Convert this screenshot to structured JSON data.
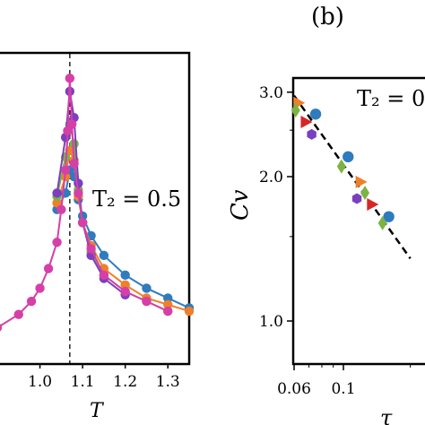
{
  "colors": {
    "blue": "#2e7bbf",
    "orange": "#f07f2a",
    "green": "#7cb342",
    "purple": "#7b3fbf",
    "magenta": "#d63fa8",
    "red": "#d62728",
    "axis": "#000000"
  },
  "chart_data": [
    {
      "type": "line",
      "panel_label": "",
      "xlabel": "T",
      "ylabel": "",
      "xlim": [
        0.9,
        1.35
      ],
      "x_ticks": [
        "1.0",
        "1.1",
        "1.2",
        "1.3"
      ],
      "x_tick_values": [
        1.0,
        1.1,
        1.2,
        1.3
      ],
      "critical_line_x": 1.07,
      "annotation": "T₂ = 0.5",
      "series": [
        {
          "color": "blue",
          "marker": "circle",
          "x": [
            1.04,
            1.06,
            1.07,
            1.08,
            1.09,
            1.1,
            1.12,
            1.15,
            1.2,
            1.25,
            1.3,
            1.35
          ],
          "y": [
            0.4,
            0.45,
            0.52,
            0.5,
            0.43,
            0.38,
            0.32,
            0.26,
            0.2,
            0.16,
            0.13,
            0.1
          ]
        },
        {
          "color": "orange",
          "marker": "circle",
          "x": [
            1.04,
            1.06,
            1.07,
            1.08,
            1.09,
            1.1,
            1.12,
            1.15,
            1.2,
            1.25,
            1.3,
            1.35
          ],
          "y": [
            0.42,
            0.5,
            0.58,
            0.55,
            0.44,
            0.36,
            0.29,
            0.22,
            0.17,
            0.13,
            0.11,
            0.09
          ]
        },
        {
          "color": "green",
          "marker": "circle",
          "x": [
            1.04,
            1.06,
            1.07,
            1.08,
            1.09,
            1.1,
            1.12,
            1.15,
            1.2,
            1.25,
            1.3
          ],
          "y": [
            0.44,
            0.56,
            0.66,
            0.6,
            0.46,
            0.36,
            0.27,
            0.2,
            0.15,
            0.12,
            0.09
          ]
        },
        {
          "color": "purple",
          "marker": "circle",
          "x": [
            1.04,
            1.06,
            1.07,
            1.08,
            1.09,
            1.1,
            1.12,
            1.15,
            1.2
          ],
          "y": [
            0.45,
            0.62,
            0.76,
            0.68,
            0.48,
            0.36,
            0.26,
            0.19,
            0.14
          ]
        },
        {
          "color": "magenta",
          "marker": "circle",
          "x": [
            0.9,
            0.95,
            0.98,
            1.0,
            1.02,
            1.04,
            1.05,
            1.06,
            1.065,
            1.07,
            1.075,
            1.08,
            1.09,
            1.1,
            1.12,
            1.15,
            1.2,
            1.25,
            1.3
          ],
          "y": [
            0.04,
            0.08,
            0.12,
            0.16,
            0.22,
            0.3,
            0.4,
            0.52,
            0.64,
            0.8,
            0.66,
            0.54,
            0.45,
            0.36,
            0.28,
            0.2,
            0.15,
            0.12,
            0.09
          ]
        }
      ]
    },
    {
      "type": "scatter",
      "panel_label": "(b)",
      "xlabel": "τ",
      "ylabel": "Cv",
      "x_scale": "log",
      "y_scale": "log",
      "xlim": [
        0.06,
        0.2
      ],
      "ylim": [
        0.8,
        3.4
      ],
      "x_ticks": [
        "0.06",
        "0.1"
      ],
      "x_tick_values": [
        0.06,
        0.1
      ],
      "y_ticks": [
        "1.0",
        "2.0",
        "3.0"
      ],
      "y_tick_values": [
        1.0,
        2.0,
        3.0
      ],
      "annotation": "T₂ = 0",
      "fit_line": {
        "x": [
          0.06,
          0.2
        ],
        "y": [
          2.95,
          1.35
        ]
      },
      "series": [
        {
          "color": "blue",
          "marker": "circle",
          "x": [
            0.075,
            0.105,
            0.16
          ],
          "y": [
            2.7,
            2.2,
            1.65
          ]
        },
        {
          "color": "orange",
          "marker": "triangle-right",
          "x": [
            0.063,
            0.12
          ],
          "y": [
            2.85,
            1.95
          ]
        },
        {
          "color": "green",
          "marker": "diamond",
          "x": [
            0.061,
            0.098,
            0.125,
            0.15
          ],
          "y": [
            2.75,
            2.1,
            1.85,
            1.6
          ]
        },
        {
          "color": "purple",
          "marker": "hexagon",
          "x": [
            0.072,
            0.115
          ],
          "y": [
            2.45,
            1.8
          ]
        },
        {
          "color": "red",
          "marker": "triangle-right",
          "x": [
            0.068,
            0.135
          ],
          "y": [
            2.6,
            1.75
          ]
        }
      ]
    }
  ]
}
